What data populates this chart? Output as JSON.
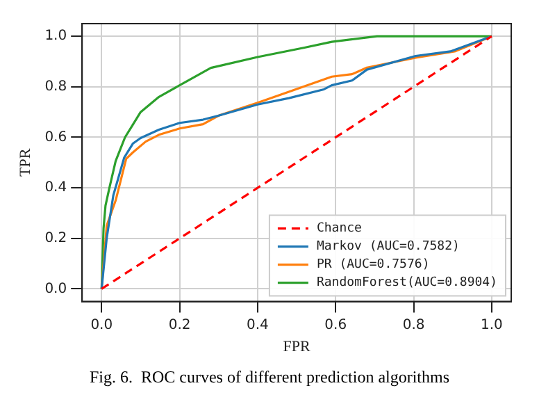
{
  "chart_data": {
    "type": "line",
    "xlabel": "FPR",
    "ylabel": "TPR",
    "xlim": [
      -0.05,
      1.05
    ],
    "ylim": [
      -0.05,
      1.05
    ],
    "xticks": [
      {
        "value": 0,
        "label": "0.0"
      },
      {
        "value": 0.2,
        "label": "0.2"
      },
      {
        "value": 0.4,
        "label": "0.4"
      },
      {
        "value": 0.6,
        "label": "0.6"
      },
      {
        "value": 0.8,
        "label": "0.8"
      },
      {
        "value": 1,
        "label": "1.0"
      }
    ],
    "yticks": [
      {
        "value": 0,
        "label": "0.0"
      },
      {
        "value": 0.2,
        "label": "0.2"
      },
      {
        "value": 0.4,
        "label": "0.4"
      },
      {
        "value": 0.6,
        "label": "0.6"
      },
      {
        "value": 0.8,
        "label": "0.8"
      },
      {
        "value": 1,
        "label": "1.0"
      }
    ],
    "grid": true,
    "legend": "bottom right",
    "marker": "none",
    "annotations": [
      "Fig. 6.  ROC curves of different prediction algorithms"
    ],
    "series": [
      {
        "name": "Chance",
        "color": "#ff0000",
        "line_style": "dashed",
        "x": [
          0,
          1
        ],
        "values": [
          0,
          1
        ]
      },
      {
        "name": "Markov (AUC=0.7582)",
        "color": "#1f77b4",
        "x": [
          0,
          0.013,
          0.03,
          0.058,
          0.08,
          0.1,
          0.147,
          0.2,
          0.26,
          0.3,
          0.4,
          0.48,
          0.57,
          0.59,
          0.642,
          0.68,
          0.805,
          0.894,
          1
        ],
        "values": [
          0,
          0.2,
          0.37,
          0.52,
          0.575,
          0.597,
          0.63,
          0.657,
          0.67,
          0.686,
          0.73,
          0.755,
          0.79,
          0.806,
          0.825,
          0.868,
          0.922,
          0.94,
          1
        ]
      },
      {
        "name": "PR (AUC=0.7576)",
        "color": "#ff7f0e",
        "x": [
          0,
          0.013,
          0.036,
          0.063,
          0.08,
          0.113,
          0.147,
          0.2,
          0.26,
          0.3,
          0.4,
          0.48,
          0.59,
          0.642,
          0.68,
          0.805,
          0.905,
          1
        ],
        "values": [
          0,
          0.25,
          0.35,
          0.515,
          0.54,
          0.583,
          0.61,
          0.635,
          0.652,
          0.686,
          0.737,
          0.78,
          0.84,
          0.85,
          0.876,
          0.915,
          0.94,
          1
        ]
      },
      {
        "name": "RandomForest(AUC=0.8904)",
        "color": "#2ca02c",
        "x": [
          0,
          0.005,
          0.01,
          0.02,
          0.036,
          0.06,
          0.08,
          0.1,
          0.147,
          0.2,
          0.28,
          0.4,
          0.52,
          0.59,
          0.706,
          1
        ],
        "values": [
          0,
          0.24,
          0.33,
          0.4,
          0.506,
          0.6,
          0.65,
          0.7,
          0.76,
          0.806,
          0.875,
          0.918,
          0.955,
          0.978,
          1,
          1
        ]
      }
    ]
  }
}
